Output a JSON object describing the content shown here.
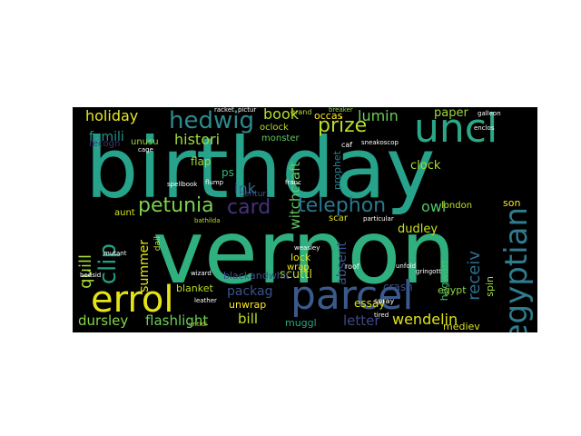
{
  "words": {
    "birthday": "birthday",
    "vernon": "vernon",
    "uncl": "uncl",
    "parcel": "parcel",
    "errol": "errol",
    "egyptian": "egyptian",
    "hedwig": "hedwig",
    "petunia": "petunia",
    "card": "card",
    "telephon": "telephon",
    "prize": "prize",
    "holiday": "holiday",
    "book": "book",
    "lumin": "lumin",
    "histori": "histori",
    "famili": "famili",
    "clip": "clip",
    "quill": "quill",
    "receiv": "receiv",
    "witchcraft": "witchcraft",
    "owl": "owl",
    "dudley": "dudley",
    "clock": "clock",
    "wendelin": "wendelin",
    "dursley": "dursley",
    "flashlight": "flashlight",
    "bill": "bill",
    "letter": "letter",
    "packag": "packag",
    "unwrap": "unwrap",
    "summer": "summer",
    "ink": "ink",
    "flap": "flap",
    "ps": "ps",
    "absent": "absent",
    "essay": "essay",
    "crash": "crash",
    "egypt": "egypt",
    "paper": "paper",
    "occas": "occas",
    "unusu": "unusu",
    "recogn": "recogn",
    "scuttl": "scuttl",
    "blanket": "blanket",
    "blackandwhit": "blackandwhit",
    "muggl": "muggl",
    "mediev": "mediev",
    "hogwart": "hogwart",
    "spin": "spin",
    "son": "son",
    "london": "london",
    "scar": "scar",
    "prophet": "prophet",
    "lock": "lock",
    "wrap": "wrap",
    "aunt": "aunt",
    "centuri": "centuri",
    "oclock": "oclock",
    "monster": "monster",
    "grand": "grand",
    "breaker": "breaker",
    "spellbook": "spellbook",
    "flump": "flump",
    "mutant": "mutant",
    "wizard": "wizard",
    "bathilda": "bathilda",
    "untidi": "untidi",
    "weasley": "weasley",
    "roof": "roof",
    "unfold": "unfold",
    "tired": "tired",
    "spray": "spray",
    "gringott": "gringott",
    "bedsid": "bedsid",
    "dail": "dail",
    "franc": "franc",
    "racket": "racket",
    "pictur": "pictur",
    "sneakoscop": "sneakoscop",
    "enclos": "enclos",
    "cage": "cage",
    "leather": "leather",
    "galleon": "galleon",
    "particular": "particular",
    "caf": "caf"
  }
}
